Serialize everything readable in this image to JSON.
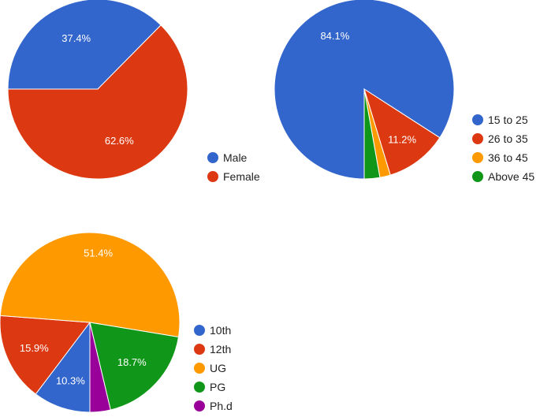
{
  "chart_data": [
    {
      "type": "pie",
      "title": "",
      "categories": [
        "Male",
        "Female"
      ],
      "values": [
        37.4,
        62.6
      ],
      "labels": [
        "37.4%",
        "62.6%"
      ],
      "colors": [
        "#3366cc",
        "#dc3912"
      ],
      "legend": "right"
    },
    {
      "type": "pie",
      "title": "",
      "categories": [
        "15 to 25",
        "26 to 35",
        "36 to 45",
        "Above 45"
      ],
      "values": [
        84.1,
        11.2,
        1.9,
        2.8
      ],
      "labels": [
        "84.1%",
        "11.2%",
        "",
        ""
      ],
      "colors": [
        "#3366cc",
        "#dc3912",
        "#ff9900",
        "#109618"
      ],
      "legend": "right"
    },
    {
      "type": "pie",
      "title": "",
      "categories": [
        "10th",
        "12th",
        "UG",
        "PG",
        "Ph.d"
      ],
      "values": [
        10.3,
        15.9,
        51.4,
        18.7,
        3.7
      ],
      "labels": [
        "10.3%",
        "15.9%",
        "51.4%",
        "18.7%",
        ""
      ],
      "colors": [
        "#3366cc",
        "#dc3912",
        "#ff9900",
        "#109618",
        "#990099"
      ],
      "legend": "right"
    }
  ]
}
